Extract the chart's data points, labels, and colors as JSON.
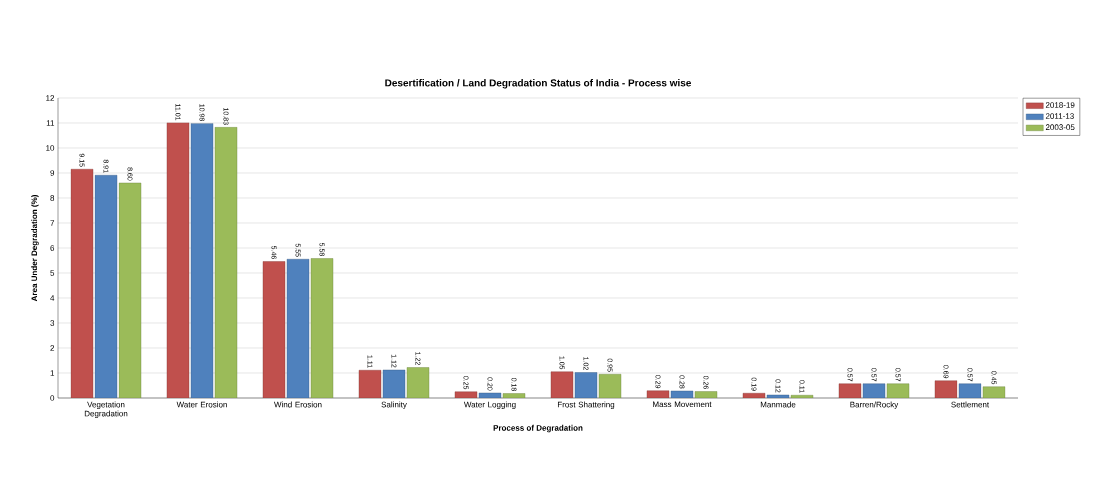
{
  "chart_data": {
    "type": "bar",
    "title": "Desertification / Land Degradation Status of India - Process wise",
    "xlabel": "Process of Degradation",
    "ylabel": "Area Under Degradation (%)",
    "categories": [
      "Vegetation Degradation",
      "Water Erosion",
      "Wind Erosion",
      "Salinity",
      "Water Logging",
      "Frost Shattering",
      "Mass Movement",
      "Manmade",
      "Barren/Rocky",
      "Settlement"
    ],
    "series": [
      {
        "name": "2018-19",
        "color": "#c0504d",
        "values": [
          9.15,
          11.01,
          5.46,
          1.11,
          0.25,
          1.05,
          0.29,
          0.19,
          0.57,
          0.69
        ],
        "value_labels": [
          "9.15",
          "11.01",
          "5.46",
          "1.11",
          "0.25",
          "1.05",
          "0.29",
          "0.19",
          "0.57",
          "0.69"
        ]
      },
      {
        "name": "2011-13",
        "color": "#4f81bd",
        "values": [
          8.91,
          10.98,
          5.55,
          1.12,
          0.2,
          1.02,
          0.28,
          0.12,
          0.57,
          0.57
        ],
        "value_labels": [
          "8.91",
          "10.98",
          "5.55",
          "1.12",
          "0.20",
          "1.02",
          "0.28",
          "0.12",
          "0.57",
          "0.57"
        ]
      },
      {
        "name": "2003-05",
        "color": "#9bbb59",
        "values": [
          8.6,
          10.83,
          5.58,
          1.22,
          0.18,
          0.95,
          0.26,
          0.11,
          0.57,
          0.45
        ],
        "value_labels": [
          "8.60",
          "10.83",
          "5.58",
          "1.22",
          "0.18",
          "0.95",
          "0.26",
          "0.11",
          "0.57",
          "0.45"
        ]
      }
    ],
    "ylim": [
      0,
      12
    ],
    "yticks": [
      0,
      1,
      2,
      3,
      4,
      5,
      6,
      7,
      8,
      9,
      10,
      11,
      12
    ],
    "grid": "y",
    "legend": "top right"
  }
}
